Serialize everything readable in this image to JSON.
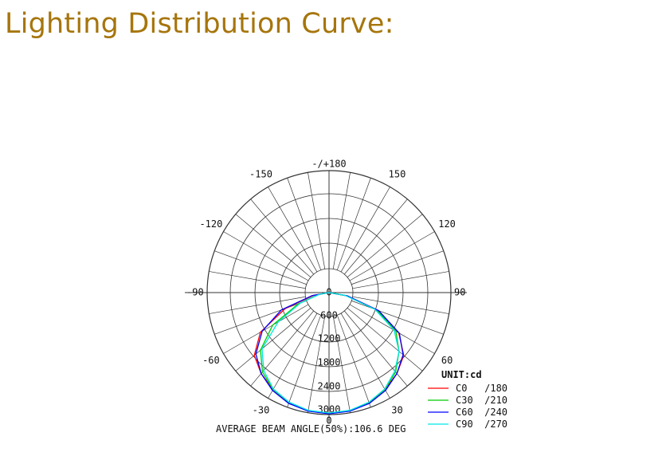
{
  "page": {
    "title": "Lighting Distribution Curve:"
  },
  "chart_data": {
    "type": "polar",
    "unit": "UNIT:cd",
    "radial_range": [
      0,
      3000
    ],
    "radial_ticks": [
      0,
      600,
      1200,
      1800,
      2400,
      3000
    ],
    "angle_labels": [
      {
        "angle": 180,
        "text": "-/+180"
      },
      {
        "angle": 150,
        "text": "150"
      },
      {
        "angle": 120,
        "text": "120"
      },
      {
        "angle": 90,
        "text": "90"
      },
      {
        "angle": 60,
        "text": "60"
      },
      {
        "angle": 30,
        "text": "30"
      },
      {
        "angle": 0,
        "text": "0"
      },
      {
        "angle": -30,
        "text": "-30"
      },
      {
        "angle": -60,
        "text": "-60"
      },
      {
        "angle": -90,
        "text": "-90"
      },
      {
        "angle": -120,
        "text": "-120"
      },
      {
        "angle": -150,
        "text": "-150"
      }
    ],
    "angles": [
      -90,
      -80,
      -70,
      -60,
      -50,
      -40,
      -30,
      -20,
      -10,
      0,
      10,
      20,
      30,
      40,
      50,
      60,
      70,
      80,
      90
    ],
    "series": [
      {
        "name": "C0   /180",
        "color": "#ff0000",
        "values": [
          0,
          380,
          1150,
          1950,
          2400,
          2600,
          2750,
          2880,
          2950,
          2970,
          2950,
          2880,
          2750,
          2600,
          2400,
          1980,
          1300,
          450,
          0
        ]
      },
      {
        "name": "C30  /210",
        "color": "#00cc00",
        "values": [
          0,
          250,
          800,
          1600,
          2200,
          2550,
          2750,
          2880,
          2950,
          2970,
          2950,
          2880,
          2750,
          2550,
          2250,
          1900,
          1250,
          430,
          0
        ]
      },
      {
        "name": "C60  /240",
        "color": "#0000ff",
        "values": [
          0,
          420,
          1250,
          1900,
          2350,
          2600,
          2780,
          2900,
          2960,
          2980,
          2960,
          2900,
          2780,
          2600,
          2380,
          2000,
          1300,
          460,
          0
        ]
      },
      {
        "name": "C90  /270",
        "color": "#00e5e5",
        "values": [
          0,
          230,
          750,
          1450,
          2150,
          2500,
          2740,
          2870,
          2940,
          2960,
          2940,
          2870,
          2740,
          2520,
          2250,
          1850,
          1200,
          400,
          0
        ]
      }
    ],
    "footer": "AVERAGE BEAM ANGLE(50%):106.6 DEG",
    "legend_position": "bottom-right"
  }
}
